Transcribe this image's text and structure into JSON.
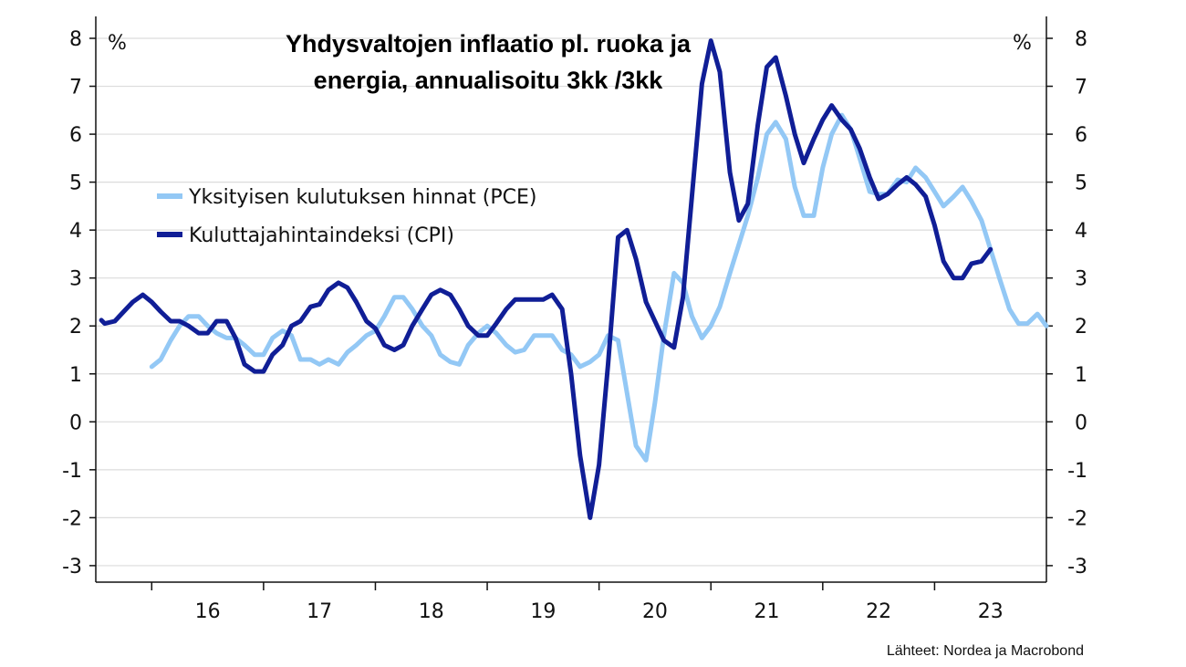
{
  "chart_data": {
    "type": "line",
    "title_lines": [
      "Yhdysvaltojen inflaatio pl. ruoka ja",
      "energia, annualisoitu 3kk /3kk"
    ],
    "unit_left": "%",
    "unit_right": "%",
    "source": "Lähteet: Nordea ja Macrobond",
    "ylim": [
      -3.3,
      8.3
    ],
    "yticks": [
      8,
      7,
      6,
      5,
      4,
      3,
      2,
      1,
      0,
      -1,
      -2,
      -3
    ],
    "ytick_labels": [
      "8",
      "7",
      "6",
      "5",
      "4",
      "3",
      "2",
      "1",
      "0",
      "-1",
      "-2",
      "-3"
    ],
    "xlim": [
      2015.5,
      2024.0
    ],
    "x_boundaries": [
      2016.0,
      2017.0,
      2018.0,
      2019.0,
      2020.0,
      2021.0,
      2022.0,
      2023.0
    ],
    "x_labels": [
      {
        "label": "16",
        "at": 2016.5
      },
      {
        "label": "17",
        "at": 2017.5
      },
      {
        "label": "18",
        "at": 2018.5
      },
      {
        "label": "19",
        "at": 2019.5
      },
      {
        "label": "20",
        "at": 2020.5
      },
      {
        "label": "21",
        "at": 2021.5
      },
      {
        "label": "22",
        "at": 2022.5
      },
      {
        "label": "23",
        "at": 2023.5
      }
    ],
    "grid": true,
    "legend_position": "left-middle",
    "series": [
      {
        "name": "Yksityisen kulutuksen hinnat (PCE)",
        "color": "#93c8f5",
        "points": [
          [
            2016.0,
            1.15
          ],
          [
            2016.08,
            1.3
          ],
          [
            2016.17,
            1.7
          ],
          [
            2016.25,
            2.0
          ],
          [
            2016.33,
            2.2
          ],
          [
            2016.42,
            2.2
          ],
          [
            2016.5,
            2.0
          ],
          [
            2016.58,
            1.85
          ],
          [
            2016.67,
            1.75
          ],
          [
            2016.75,
            1.75
          ],
          [
            2016.83,
            1.6
          ],
          [
            2016.92,
            1.4
          ],
          [
            2017.0,
            1.4
          ],
          [
            2017.08,
            1.75
          ],
          [
            2017.17,
            1.9
          ],
          [
            2017.25,
            1.8
          ],
          [
            2017.33,
            1.3
          ],
          [
            2017.42,
            1.3
          ],
          [
            2017.5,
            1.2
          ],
          [
            2017.58,
            1.3
          ],
          [
            2017.67,
            1.2
          ],
          [
            2017.75,
            1.45
          ],
          [
            2017.83,
            1.6
          ],
          [
            2017.92,
            1.8
          ],
          [
            2018.0,
            1.9
          ],
          [
            2018.08,
            2.2
          ],
          [
            2018.17,
            2.6
          ],
          [
            2018.25,
            2.6
          ],
          [
            2018.33,
            2.35
          ],
          [
            2018.42,
            2.0
          ],
          [
            2018.5,
            1.8
          ],
          [
            2018.58,
            1.4
          ],
          [
            2018.67,
            1.25
          ],
          [
            2018.75,
            1.2
          ],
          [
            2018.83,
            1.6
          ],
          [
            2018.92,
            1.85
          ],
          [
            2019.0,
            2.0
          ],
          [
            2019.08,
            1.85
          ],
          [
            2019.17,
            1.6
          ],
          [
            2019.25,
            1.45
          ],
          [
            2019.33,
            1.5
          ],
          [
            2019.42,
            1.8
          ],
          [
            2019.5,
            1.8
          ],
          [
            2019.58,
            1.8
          ],
          [
            2019.67,
            1.5
          ],
          [
            2019.75,
            1.4
          ],
          [
            2019.83,
            1.15
          ],
          [
            2019.92,
            1.25
          ],
          [
            2020.0,
            1.4
          ],
          [
            2020.08,
            1.8
          ],
          [
            2020.17,
            1.7
          ],
          [
            2020.25,
            0.6
          ],
          [
            2020.33,
            -0.5
          ],
          [
            2020.42,
            -0.8
          ],
          [
            2020.5,
            0.4
          ],
          [
            2020.58,
            1.8
          ],
          [
            2020.67,
            3.1
          ],
          [
            2020.75,
            2.9
          ],
          [
            2020.83,
            2.2
          ],
          [
            2020.92,
            1.75
          ],
          [
            2021.0,
            2.0
          ],
          [
            2021.08,
            2.4
          ],
          [
            2021.17,
            3.1
          ],
          [
            2021.25,
            3.7
          ],
          [
            2021.33,
            4.3
          ],
          [
            2021.42,
            5.1
          ],
          [
            2021.5,
            6.0
          ],
          [
            2021.58,
            6.25
          ],
          [
            2021.67,
            5.9
          ],
          [
            2021.75,
            4.9
          ],
          [
            2021.83,
            4.3
          ],
          [
            2021.92,
            4.3
          ],
          [
            2022.0,
            5.3
          ],
          [
            2022.08,
            6.0
          ],
          [
            2022.17,
            6.4
          ],
          [
            2022.25,
            6.1
          ],
          [
            2022.33,
            5.5
          ],
          [
            2022.42,
            4.8
          ],
          [
            2022.5,
            4.75
          ],
          [
            2022.58,
            4.75
          ],
          [
            2022.67,
            5.05
          ],
          [
            2022.75,
            5.0
          ],
          [
            2022.83,
            5.3
          ],
          [
            2022.92,
            5.1
          ],
          [
            2023.0,
            4.8
          ],
          [
            2023.08,
            4.5
          ],
          [
            2023.17,
            4.7
          ],
          [
            2023.25,
            4.9
          ],
          [
            2023.33,
            4.6
          ],
          [
            2023.42,
            4.2
          ],
          [
            2023.5,
            3.6
          ],
          [
            2023.58,
            3.0
          ],
          [
            2023.67,
            2.35
          ],
          [
            2023.75,
            2.05
          ],
          [
            2023.83,
            2.05
          ],
          [
            2023.92,
            2.25
          ],
          [
            2024.0,
            2.0
          ]
        ]
      },
      {
        "name": "Kuluttajahintaindeksi (CPI)",
        "color": "#101e96",
        "points": [
          [
            2015.55,
            2.12
          ],
          [
            2015.58,
            2.05
          ],
          [
            2015.67,
            2.1
          ],
          [
            2015.75,
            2.3
          ],
          [
            2015.83,
            2.5
          ],
          [
            2015.92,
            2.65
          ],
          [
            2016.0,
            2.5
          ],
          [
            2016.08,
            2.3
          ],
          [
            2016.17,
            2.1
          ],
          [
            2016.25,
            2.1
          ],
          [
            2016.33,
            2.0
          ],
          [
            2016.42,
            1.85
          ],
          [
            2016.5,
            1.85
          ],
          [
            2016.58,
            2.1
          ],
          [
            2016.67,
            2.1
          ],
          [
            2016.75,
            1.75
          ],
          [
            2016.83,
            1.2
          ],
          [
            2016.92,
            1.05
          ],
          [
            2017.0,
            1.05
          ],
          [
            2017.08,
            1.4
          ],
          [
            2017.17,
            1.6
          ],
          [
            2017.25,
            2.0
          ],
          [
            2017.33,
            2.1
          ],
          [
            2017.42,
            2.4
          ],
          [
            2017.5,
            2.45
          ],
          [
            2017.58,
            2.75
          ],
          [
            2017.67,
            2.9
          ],
          [
            2017.75,
            2.8
          ],
          [
            2017.83,
            2.5
          ],
          [
            2017.92,
            2.1
          ],
          [
            2018.0,
            1.95
          ],
          [
            2018.08,
            1.6
          ],
          [
            2018.17,
            1.5
          ],
          [
            2018.25,
            1.6
          ],
          [
            2018.33,
            2.0
          ],
          [
            2018.42,
            2.35
          ],
          [
            2018.5,
            2.65
          ],
          [
            2018.58,
            2.75
          ],
          [
            2018.67,
            2.65
          ],
          [
            2018.75,
            2.35
          ],
          [
            2018.83,
            2.0
          ],
          [
            2018.92,
            1.8
          ],
          [
            2019.0,
            1.8
          ],
          [
            2019.08,
            2.05
          ],
          [
            2019.17,
            2.35
          ],
          [
            2019.25,
            2.55
          ],
          [
            2019.33,
            2.55
          ],
          [
            2019.42,
            2.55
          ],
          [
            2019.5,
            2.55
          ],
          [
            2019.58,
            2.65
          ],
          [
            2019.67,
            2.35
          ],
          [
            2019.75,
            1.0
          ],
          [
            2019.83,
            -0.7
          ],
          [
            2019.92,
            -2.0
          ],
          [
            2020.0,
            -0.9
          ],
          [
            2020.08,
            1.2
          ],
          [
            2020.17,
            3.85
          ],
          [
            2020.25,
            4.0
          ],
          [
            2020.33,
            3.4
          ],
          [
            2020.42,
            2.5
          ],
          [
            2020.5,
            2.1
          ],
          [
            2020.58,
            1.7
          ],
          [
            2020.67,
            1.55
          ],
          [
            2020.75,
            2.6
          ],
          [
            2020.83,
            4.7
          ],
          [
            2020.92,
            7.05
          ],
          [
            2021.0,
            7.95
          ],
          [
            2021.08,
            7.3
          ],
          [
            2021.17,
            5.2
          ],
          [
            2021.25,
            4.2
          ],
          [
            2021.33,
            4.55
          ],
          [
            2021.42,
            6.2
          ],
          [
            2021.5,
            7.4
          ],
          [
            2021.58,
            7.6
          ],
          [
            2021.67,
            6.8
          ],
          [
            2021.75,
            6.0
          ],
          [
            2021.83,
            5.4
          ],
          [
            2021.92,
            5.9
          ],
          [
            2022.0,
            6.3
          ],
          [
            2022.08,
            6.6
          ],
          [
            2022.17,
            6.3
          ],
          [
            2022.25,
            6.1
          ],
          [
            2022.33,
            5.7
          ],
          [
            2022.42,
            5.1
          ],
          [
            2022.5,
            4.65
          ],
          [
            2022.58,
            4.75
          ],
          [
            2022.67,
            4.95
          ],
          [
            2022.75,
            5.1
          ],
          [
            2022.83,
            4.95
          ],
          [
            2022.92,
            4.7
          ],
          [
            2023.0,
            4.1
          ],
          [
            2023.08,
            3.35
          ],
          [
            2023.17,
            3.0
          ],
          [
            2023.25,
            3.0
          ],
          [
            2023.33,
            3.3
          ],
          [
            2023.42,
            3.35
          ],
          [
            2023.5,
            3.6
          ]
        ]
      }
    ]
  }
}
